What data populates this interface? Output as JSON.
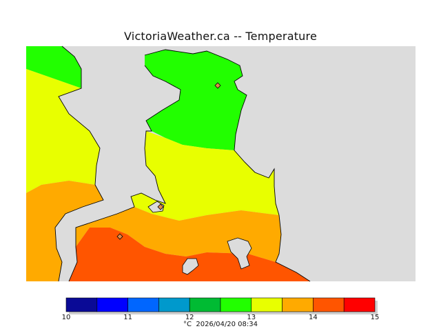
{
  "title": "VictoriaWeather.ca -- Temperature",
  "map": {
    "land_color": "#dcdcdc",
    "coastline_color": "#000000",
    "band_colors": {
      "12_13": "#22ff00",
      "13_13.5": "#e8ff00",
      "13.5_14": "#ffaa00",
      "14_14.5": "#ff5500"
    }
  },
  "colorbar": {
    "unit": "°C",
    "timestamp": "2026/04/20 08:34",
    "tick_labels": [
      "10",
      "11",
      "12",
      "13",
      "14",
      "15"
    ],
    "colors": [
      "#0a0a96",
      "#0000ff",
      "#0066ff",
      "#0099cc",
      "#00bb33",
      "#22ff00",
      "#e8ff00",
      "#ffaa00",
      "#ff5500",
      "#ff0000"
    ]
  }
}
